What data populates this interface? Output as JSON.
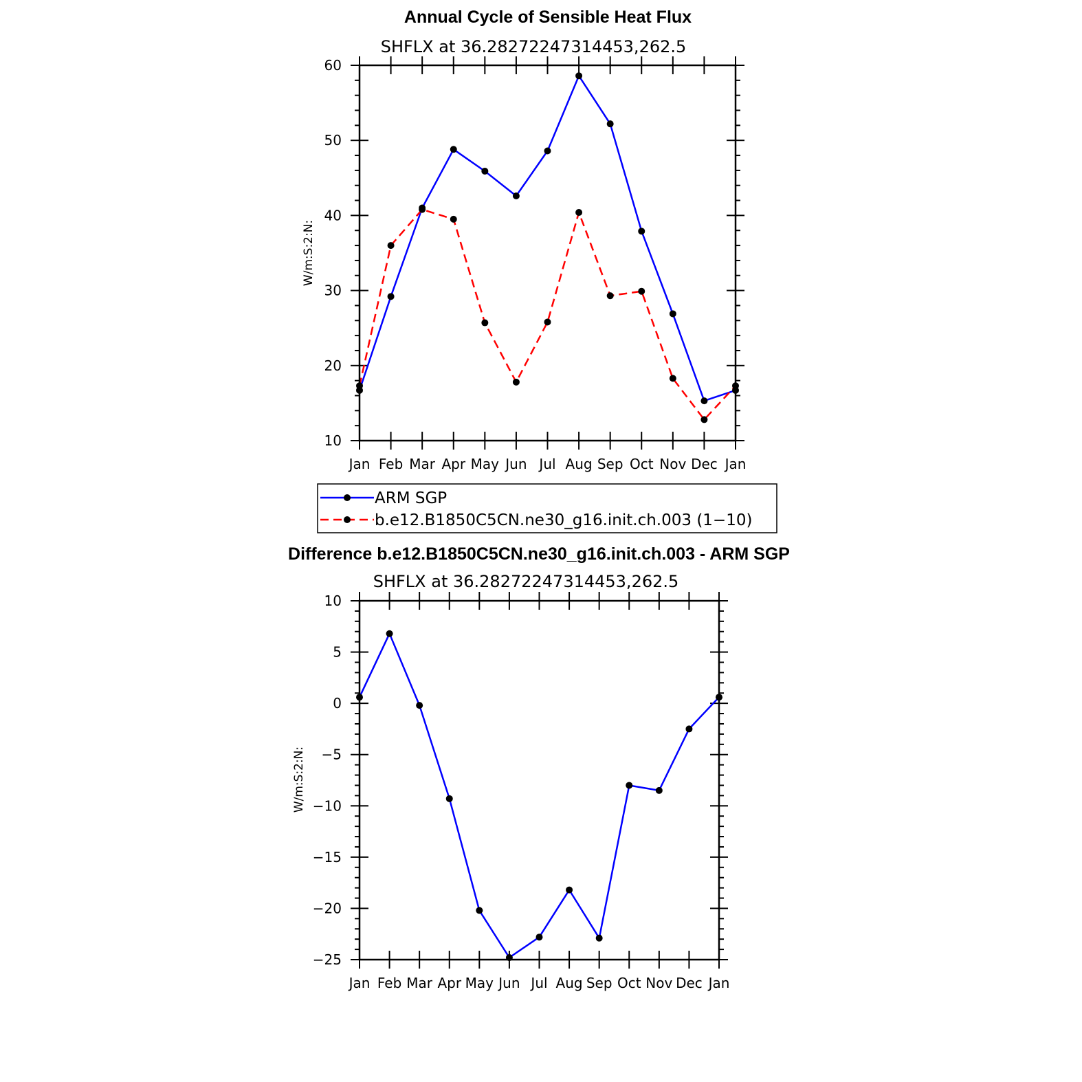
{
  "chart_data": [
    {
      "type": "line",
      "title": "Annual Cycle of Sensible Heat Flux",
      "subtitle": "SHFLX at 36.28272247314453,262.5",
      "ylabel": "W/m:S:2:N:",
      "xlabel": "",
      "categories": [
        "Jan",
        "Feb",
        "Mar",
        "Apr",
        "May",
        "Jun",
        "Jul",
        "Aug",
        "Sep",
        "Oct",
        "Nov",
        "Dec",
        "Jan"
      ],
      "ylim": [
        10,
        60
      ],
      "yticks": [
        10,
        20,
        30,
        40,
        50,
        60
      ],
      "grid": false,
      "legend_position": "bottom",
      "series": [
        {
          "name": "ARM SGP",
          "color": "#0000ff",
          "dash": "solid",
          "values": [
            16.7,
            29.2,
            41.0,
            48.8,
            45.9,
            42.6,
            48.6,
            58.6,
            52.2,
            37.9,
            26.9,
            15.3,
            16.7
          ]
        },
        {
          "name": "b.e12.B1850C5CN.ne30_g16.init.ch.003 (1−10)",
          "color": "#ff0000",
          "dash": "dashed",
          "values": [
            17.3,
            36.0,
            40.8,
            39.5,
            25.7,
            17.8,
            25.8,
            40.4,
            29.3,
            29.9,
            18.3,
            12.8,
            17.3
          ]
        }
      ]
    },
    {
      "type": "line",
      "title": "Difference b.e12.B1850C5CN.ne30_g16.init.ch.003 - ARM SGP",
      "subtitle": "SHFLX at 36.28272247314453,262.5",
      "ylabel": "W/m:S:2:N:",
      "xlabel": "",
      "categories": [
        "Jan",
        "Feb",
        "Mar",
        "Apr",
        "May",
        "Jun",
        "Jul",
        "Aug",
        "Sep",
        "Oct",
        "Nov",
        "Dec",
        "Jan"
      ],
      "ylim": [
        -25,
        10
      ],
      "yticks": [
        -25,
        -20,
        -15,
        -10,
        -5,
        0,
        5,
        10
      ],
      "ytick_labels": [
        "−25",
        "−20",
        "−15",
        "−10",
        "−5",
        "0",
        "5",
        "10"
      ],
      "grid": false,
      "series": [
        {
          "color": "#0000ff",
          "dash": "solid",
          "values": [
            0.6,
            6.8,
            -0.2,
            -9.3,
            -20.2,
            -24.8,
            -22.8,
            -18.2,
            -22.9,
            -8.0,
            -8.5,
            -2.5,
            0.6
          ]
        }
      ]
    }
  ]
}
